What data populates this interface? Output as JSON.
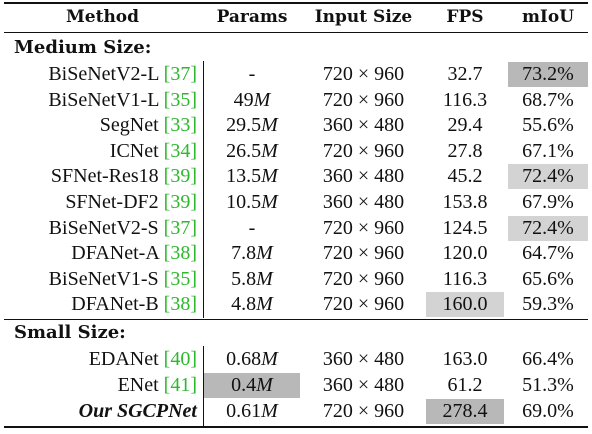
{
  "headers": {
    "method": "Method",
    "params": "Params",
    "input_size": "Input Size",
    "fps": "FPS",
    "miou": "mIoU"
  },
  "sections": {
    "medium": "Medium Size:",
    "small": "Small Size:"
  },
  "medium_rows": [
    {
      "method": "BiSeNetV2-L",
      "ref": "[37]",
      "params": "-",
      "input": "720 × 960",
      "fps": "32.7",
      "miou": "73.2%"
    },
    {
      "method": "BiSeNetV1-L",
      "ref": "[35]",
      "params": "49M",
      "input": "720 × 960",
      "fps": "116.3",
      "miou": "68.7%"
    },
    {
      "method": "SegNet",
      "ref": "[33]",
      "params": "29.5M",
      "input": "360 × 480",
      "fps": "29.4",
      "miou": "55.6%"
    },
    {
      "method": "ICNet",
      "ref": "[34]",
      "params": "26.5M",
      "input": "720 × 960",
      "fps": "27.8",
      "miou": "67.1%"
    },
    {
      "method": "SFNet-Res18",
      "ref": "[39]",
      "params": "13.5M",
      "input": "360 × 480",
      "fps": "45.2",
      "miou": "72.4%"
    },
    {
      "method": "SFNet-DF2",
      "ref": "[39]",
      "params": "10.5M",
      "input": "360 × 480",
      "fps": "153.8",
      "miou": "67.9%"
    },
    {
      "method": "BiSeNetV2-S",
      "ref": "[37]",
      "params": "-",
      "input": "720 × 960",
      "fps": "124.5",
      "miou": "72.4%"
    },
    {
      "method": "DFANet-A",
      "ref": "[38]",
      "params": "7.8M",
      "input": "720 × 960",
      "fps": "120.0",
      "miou": "64.7%"
    },
    {
      "method": "BiSeNetV1-S",
      "ref": "[35]",
      "params": "5.8M",
      "input": "720 × 960",
      "fps": "116.3",
      "miou": "65.6%"
    },
    {
      "method": "DFANet-B",
      "ref": "[38]",
      "params": "4.8M",
      "input": "720 × 960",
      "fps": "160.0",
      "miou": "59.3%"
    }
  ],
  "small_rows": [
    {
      "method": "EDANet",
      "ref": "[40]",
      "params": "0.68M",
      "input": "360 × 480",
      "fps": "163.0",
      "miou": "66.4%"
    },
    {
      "method": "ENet",
      "ref": "[41]",
      "params": "0.4M",
      "input": "360 × 480",
      "fps": "61.2",
      "miou": "51.3%"
    },
    {
      "method": "Our SGCPNet",
      "ref": "",
      "params": "0.61M",
      "input": "720 × 960",
      "fps": "278.4",
      "miou": "69.0%"
    }
  ]
}
